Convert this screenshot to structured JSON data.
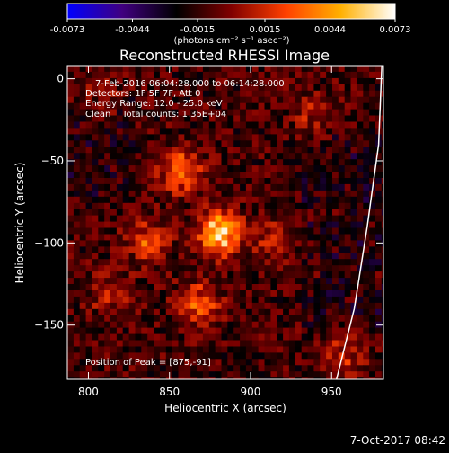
{
  "colorbar": {
    "ticks": [
      "-0.0073",
      "-0.0044",
      "-0.0015",
      "0.0015",
      "0.0044",
      "0.0073"
    ],
    "tick_values": [
      -0.0073,
      -0.0044,
      -0.0015,
      0.0015,
      0.0044,
      0.0073
    ],
    "unit": "(photons cm⁻² s⁻¹ asec⁻²)",
    "colors": [
      "#0000ff",
      "#400080",
      "#000000",
      "#800000",
      "#ff4000",
      "#ffb000",
      "#ffffff"
    ]
  },
  "chart_data": {
    "type": "heatmap",
    "title": "Reconstructed RHESSI Image",
    "xlabel": "Heliocentric X (arcsec)",
    "ylabel": "Heliocentric Y (arcsec)",
    "xlim": [
      787,
      982
    ],
    "ylim": [
      -183,
      8
    ],
    "xticks": [
      800,
      850,
      900,
      950
    ],
    "yticks": [
      0,
      -50,
      -100,
      -150
    ],
    "xtick_labels": [
      "800",
      "850",
      "900",
      "950"
    ],
    "ytick_labels": [
      "0",
      "−50",
      "−100",
      "−150"
    ],
    "grid": false,
    "info_lines": [
      "7-Feb-2016 06:04:28.000 to 06:14:28.000",
      "Detectors: 1F 5F 7F, Att 0",
      "Energy Range: 12.0 - 25.0 keV",
      "Clean    Total counts: 1.35E+04"
    ],
    "peak_label": "Position of Peak = [875,-91]",
    "peak": [
      875,
      -91
    ],
    "sources": [
      {
        "x": 879,
        "y": -92,
        "peak": 0.0073
      },
      {
        "x": 855,
        "y": -55,
        "peak": 0.0047
      },
      {
        "x": 866,
        "y": -135,
        "peak": 0.0041
      },
      {
        "x": 835,
        "y": -97,
        "peak": 0.0034
      },
      {
        "x": 812,
        "y": -130,
        "peak": 0.0022
      },
      {
        "x": 912,
        "y": -97,
        "peak": 0.0018
      },
      {
        "x": 938,
        "y": -20,
        "peak": 0.002
      },
      {
        "x": 955,
        "y": -168,
        "peak": 0.0024
      },
      {
        "x": 805,
        "y": -10,
        "peak": 0.0017
      }
    ],
    "limb_curve": [
      [
        979,
        -40
      ],
      [
        972,
        -90
      ],
      [
        964,
        -140
      ],
      [
        953,
        -183
      ]
    ]
  },
  "timestamp": "7-Oct-2017 08:42"
}
